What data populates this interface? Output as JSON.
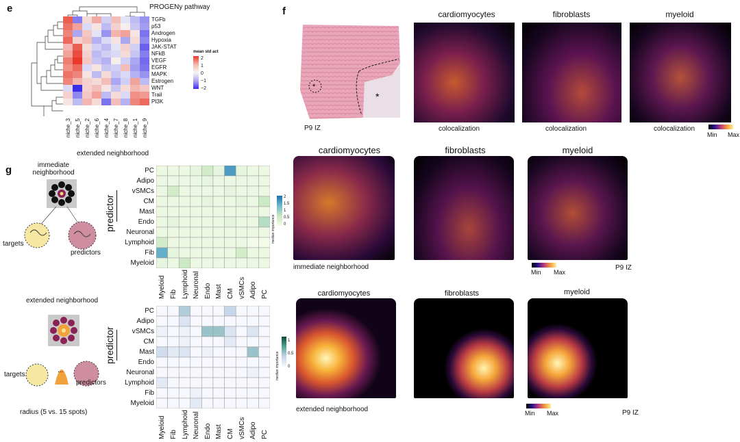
{
  "panel_e": {
    "label": "e",
    "title": "PROGENy pathway",
    "rows": [
      "TGFb",
      "p53",
      "Androgen",
      "Hypoxia",
      "JAK-STAT",
      "NFkB",
      "VEGF",
      "EGFR",
      "MAPK",
      "Estrogen",
      "WNT",
      "Trail",
      "PI3K"
    ],
    "cols": [
      "niche_3",
      "niche_5",
      "niche_2",
      "niche_6",
      "niche_4",
      "niche_7",
      "niche_8",
      "niche_1",
      "niche_9"
    ],
    "legend_title": "mean std act",
    "legend_ticks": [
      "2",
      "1",
      "0",
      "−1",
      "−2"
    ],
    "matrix": [
      [
        1.6,
        -1.2,
        0.3,
        0.8,
        -0.4,
        0.6,
        -0.2,
        -0.6,
        -1.0
      ],
      [
        1.4,
        0.9,
        -0.3,
        0.2,
        -0.6,
        0.4,
        0.1,
        -0.5,
        -0.9
      ],
      [
        1.2,
        -0.8,
        0.5,
        -0.2,
        -1.0,
        0.7,
        0.9,
        0.2,
        -1.3
      ],
      [
        1.5,
        0.4,
        0.6,
        -0.7,
        -0.3,
        0.2,
        -0.8,
        0.3,
        -1.1
      ],
      [
        0.7,
        1.6,
        0.3,
        -0.4,
        -0.6,
        -0.2,
        0.4,
        -0.4,
        -1.5
      ],
      [
        0.9,
        1.8,
        0.4,
        -0.6,
        -0.4,
        -0.3,
        0.3,
        -0.5,
        -1.2
      ],
      [
        1.3,
        2.0,
        0.5,
        -0.5,
        -0.7,
        0.1,
        -0.4,
        -0.8,
        -1.4
      ],
      [
        1.1,
        1.5,
        -0.3,
        0.2,
        -0.5,
        -0.4,
        0.6,
        -0.9,
        -1.3
      ],
      [
        1.4,
        1.2,
        0.2,
        -0.6,
        0.3,
        -0.5,
        -0.3,
        -0.7,
        -1.0
      ],
      [
        1.2,
        0.7,
        0.4,
        0.3,
        0.6,
        -0.8,
        -0.4,
        0.9,
        -0.6
      ],
      [
        -0.3,
        -2.0,
        0.4,
        0.6,
        0.2,
        -0.5,
        0.3,
        0.7,
        0.5
      ],
      [
        0.4,
        -1.1,
        0.5,
        0.9,
        -0.6,
        0.3,
        -0.3,
        1.1,
        1.0
      ],
      [
        0.2,
        -0.6,
        0.7,
        0.3,
        -1.3,
        0.6,
        -0.7,
        1.2,
        1.5
      ]
    ]
  },
  "panel_f": {
    "label": "f",
    "sample_label": "P9 IZ",
    "row1_titles": [
      "cardiomyocytes",
      "fibroblasts",
      "myeloid"
    ],
    "coloc_label": "colocalization",
    "row2_titles": [
      "cardiomyocytes",
      "fibroblasts",
      "myeloid"
    ],
    "row2_caption": "immediate neighborhood",
    "row3_titles": [
      "cardiomyocytes",
      "fibroblasts",
      "myeloid"
    ],
    "row3_caption": "extended neighborhood",
    "scale_min": "Min",
    "scale_max": "Max",
    "sample_label_2": "P9 IZ",
    "sample_label_3": "P9 IZ"
  },
  "panel_g": {
    "label": "g",
    "top_title": "extended neighborhood",
    "immediate_title": "immediate\nneighborhood",
    "extended_title": "extended neighborhood",
    "targets": "targets",
    "predictors": "predictors",
    "targets2": "targets",
    "predictors2": "predictors",
    "radius_note": "radius (5 vs. 15 spots)",
    "predictor_axis": "predictor",
    "predictor_axis2": "predictor",
    "rows": [
      "PC",
      "Adipo",
      "vSMCs",
      "CM",
      "Mast",
      "Endo",
      "Neuronal",
      "Lymphoid",
      "Fib",
      "Myeloid"
    ],
    "cols": [
      "Myeloid",
      "Fib",
      "Lymphoid",
      "Neuronal",
      "Endo",
      "Mast",
      "CM",
      "vSMCs",
      "Adipo",
      "PC"
    ],
    "legend1_title": "median importance",
    "legend1_ticks": [
      "2",
      "1.5",
      "1",
      "0.5",
      "0"
    ],
    "legend2_title": "median importance",
    "legend2_ticks": [
      "1",
      "0.5",
      "0"
    ],
    "matrix1": [
      [
        0.1,
        0.1,
        0.1,
        0.2,
        0.5,
        0.2,
        1.6,
        0.2,
        0.1,
        0.1
      ],
      [
        0.1,
        0.1,
        0.1,
        0.1,
        0.2,
        0.1,
        0.1,
        0.1,
        0.1,
        0.1
      ],
      [
        0.1,
        0.5,
        0.1,
        0.1,
        0.1,
        0.1,
        0.2,
        0.1,
        0.1,
        0.1
      ],
      [
        0.1,
        0.1,
        0.1,
        0.1,
        0.2,
        0.1,
        0.1,
        0.2,
        0.1,
        0.6
      ],
      [
        0.1,
        0.1,
        0.1,
        0.1,
        0.1,
        0.1,
        0.1,
        0.1,
        0.1,
        0.1
      ],
      [
        0.1,
        0.2,
        0.1,
        0.1,
        0.1,
        0.1,
        0.2,
        0.1,
        0.1,
        0.8
      ],
      [
        0.1,
        0.1,
        0.1,
        0.1,
        0.1,
        0.1,
        0.1,
        0.1,
        0.1,
        0.1
      ],
      [
        0.5,
        0.1,
        0.1,
        0.1,
        0.1,
        0.1,
        0.1,
        0.1,
        0.0,
        0.0
      ],
      [
        1.4,
        0.2,
        0.1,
        0.1,
        0.1,
        0.1,
        0.1,
        0.5,
        0.1,
        0.1
      ],
      [
        0.2,
        0.1,
        0.6,
        0.1,
        0.1,
        0.1,
        0.1,
        0.1,
        0.1,
        0.1
      ]
    ],
    "matrix2": [
      [
        0.0,
        0.0,
        0.6,
        0.0,
        0.0,
        0.0,
        0.5,
        0.0,
        0.0,
        0.0
      ],
      [
        0.0,
        0.0,
        0.3,
        0.0,
        0.0,
        0.0,
        0.0,
        0.0,
        0.0,
        0.0
      ],
      [
        0.1,
        0.0,
        0.1,
        0.0,
        0.7,
        0.7,
        0.3,
        0.0,
        0.3,
        0.0
      ],
      [
        0.0,
        0.0,
        0.1,
        0.0,
        0.0,
        0.0,
        0.2,
        0.0,
        0.0,
        0.0
      ],
      [
        0.4,
        0.2,
        0.3,
        0.0,
        0.1,
        0.0,
        0.0,
        0.0,
        0.7,
        0.0
      ],
      [
        0.0,
        0.0,
        0.0,
        0.0,
        0.0,
        0.0,
        0.0,
        0.0,
        0.0,
        0.0
      ],
      [
        0.0,
        0.0,
        0.0,
        0.0,
        0.0,
        0.0,
        0.0,
        0.0,
        0.1,
        0.0
      ],
      [
        0.2,
        0.0,
        0.0,
        0.0,
        0.0,
        0.0,
        0.0,
        0.0,
        0.0,
        0.0
      ],
      [
        0.0,
        0.0,
        0.0,
        0.1,
        0.0,
        0.0,
        0.0,
        0.0,
        0.0,
        0.0
      ],
      [
        0.0,
        0.0,
        0.0,
        0.2,
        0.0,
        0.0,
        0.0,
        0.0,
        0.0,
        0.0
      ]
    ]
  }
}
